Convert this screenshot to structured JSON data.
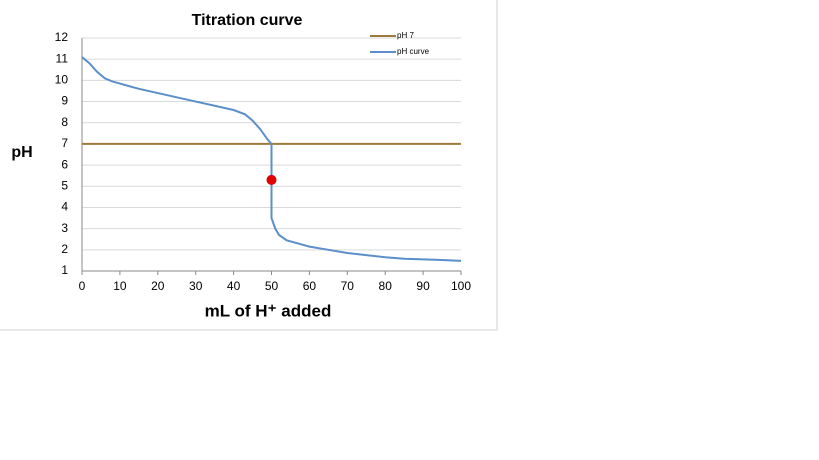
{
  "chart_data": {
    "type": "line",
    "title": "Titration curve",
    "x_label": "mL of H⁺ added",
    "y_label": "pH",
    "series": [
      {
        "name": "pH 7",
        "color": "#a07a3c",
        "x": [
          0,
          100
        ],
        "values": [
          7,
          7
        ]
      },
      {
        "name": "pH curve",
        "color": "#5b8fc9",
        "x": [
          0,
          2,
          4,
          6,
          8,
          10,
          15,
          20,
          25,
          30,
          35,
          40,
          43,
          45,
          47,
          49,
          50,
          50,
          51,
          52,
          54,
          57,
          60,
          65,
          70,
          75,
          80,
          85,
          90,
          95,
          100
        ],
        "values": [
          11.1,
          10.8,
          10.4,
          10.1,
          9.95,
          9.85,
          9.6,
          9.4,
          9.2,
          9.0,
          8.8,
          8.6,
          8.4,
          8.1,
          7.7,
          7.2,
          7.0,
          3.5,
          3.0,
          2.7,
          2.45,
          2.3,
          2.15,
          2.0,
          1.85,
          1.75,
          1.65,
          1.58,
          1.55,
          1.52,
          1.48
        ]
      }
    ],
    "point": {
      "x": 50,
      "y": 5.3,
      "color": "#e00000"
    },
    "xlim": [
      0,
      100
    ],
    "xticks": [
      0,
      10,
      20,
      30,
      40,
      50,
      60,
      70,
      80,
      90,
      100
    ],
    "ylim": [
      1,
      12
    ],
    "yticks": [
      1,
      2,
      3,
      4,
      5,
      6,
      7,
      8,
      9,
      10,
      11,
      12
    ],
    "grid": true,
    "legend": "top-right"
  }
}
